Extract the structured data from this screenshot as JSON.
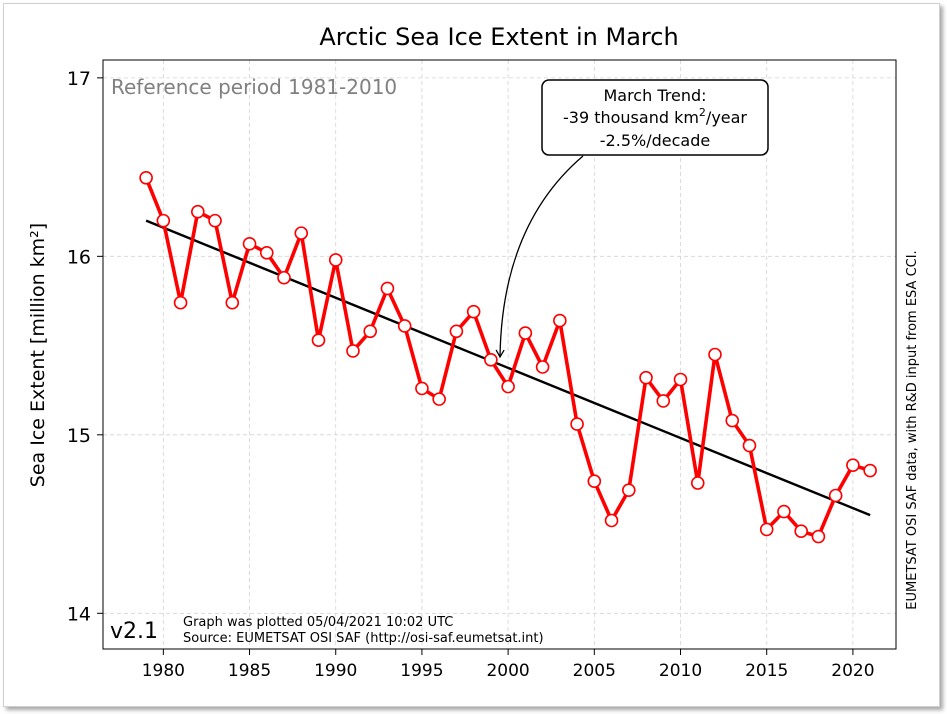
{
  "chart_data": {
    "type": "line",
    "title": "Arctic Sea Ice Extent in March",
    "ylabel": "Sea Ice Extent [million km²]",
    "xlabel": "",
    "xlim": [
      1976.5,
      2022.5
    ],
    "ylim": [
      13.8,
      17.1
    ],
    "xticks": [
      1980,
      1985,
      1990,
      1995,
      2000,
      2005,
      2010,
      2015,
      2020
    ],
    "yticks": [
      14,
      15,
      16,
      17
    ],
    "grid": true,
    "series": [
      {
        "color": "#ff0000",
        "x": [
          1979,
          1980,
          1981,
          1982,
          1983,
          1984,
          1985,
          1986,
          1987,
          1988,
          1989,
          1990,
          1991,
          1992,
          1993,
          1994,
          1995,
          1996,
          1997,
          1998,
          1999,
          2000,
          2001,
          2002,
          2003,
          2004,
          2005,
          2006,
          2007,
          2008,
          2009,
          2010,
          2011,
          2012,
          2013,
          2014,
          2015,
          2016,
          2017,
          2018,
          2019,
          2020,
          2021
        ],
        "values": [
          16.44,
          16.2,
          15.74,
          16.25,
          16.2,
          15.74,
          16.07,
          16.02,
          15.88,
          16.13,
          15.53,
          15.98,
          15.47,
          15.58,
          15.82,
          15.61,
          15.26,
          15.2,
          15.58,
          15.69,
          15.42,
          15.27,
          15.57,
          15.38,
          15.64,
          15.06,
          14.74,
          14.52,
          14.69,
          15.32,
          15.19,
          15.31,
          14.73,
          15.45,
          15.08,
          14.94,
          14.47,
          14.57,
          14.46,
          14.43,
          14.66,
          14.83,
          14.8
        ]
      }
    ],
    "trend": {
      "x": [
        1979,
        2021
      ],
      "y": [
        16.2,
        14.55
      ],
      "color": "#000000"
    }
  },
  "annotations": {
    "reference_period": "Reference period 1981-2010",
    "trend_title": "March Trend:",
    "trend_rate_pre": "-39 thousand km",
    "trend_rate_sup": "2",
    "trend_rate_post": "/year",
    "trend_decade": "-2.5%/decade",
    "version": "v2.1",
    "plotted_line": "Graph was plotted 05/04/2021 10:02 UTC",
    "source_line": "Source: EUMETSAT OSI SAF (http://osi-saf.eumetsat.int)",
    "side_credit": "EUMETSAT OSI SAF data, with R&D input from ESA CCI."
  }
}
